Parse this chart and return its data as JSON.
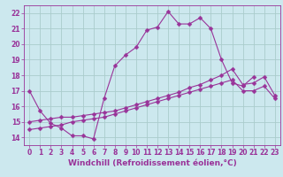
{
  "bg_color": "#cce8ee",
  "grid_color": "#aacccc",
  "line_color": "#993399",
  "marker": "D",
  "markersize": 2.5,
  "linewidth": 0.8,
  "xlabel": "Windchill (Refroidissement éolien,°C)",
  "xlabel_fontsize": 6.5,
  "tick_fontsize": 5.5,
  "ylim": [
    13.5,
    22.5
  ],
  "xlim": [
    -0.5,
    23.5
  ],
  "yticks": [
    14,
    15,
    16,
    17,
    18,
    19,
    20,
    21,
    22
  ],
  "xticks": [
    0,
    1,
    2,
    3,
    4,
    5,
    6,
    7,
    8,
    9,
    10,
    11,
    12,
    13,
    14,
    15,
    16,
    17,
    18,
    19,
    20,
    21,
    22,
    23
  ],
  "series1_x": [
    0,
    1,
    2,
    3,
    4,
    5,
    6,
    7,
    8,
    9,
    10,
    11,
    12,
    13,
    14,
    15,
    16,
    17,
    18,
    19,
    20,
    21
  ],
  "series1_y": [
    17.0,
    15.7,
    14.9,
    14.6,
    14.1,
    14.1,
    13.9,
    16.5,
    18.6,
    19.3,
    19.8,
    20.9,
    21.1,
    22.1,
    21.3,
    21.3,
    21.7,
    21.0,
    19.0,
    17.5,
    17.3,
    17.9
  ],
  "series2_x": [
    0,
    1,
    2,
    3,
    4,
    5,
    6,
    7,
    8,
    9,
    10,
    11,
    12,
    13,
    14,
    15,
    16,
    17,
    18,
    19,
    20,
    21,
    22,
    23
  ],
  "series2_y": [
    15.0,
    15.1,
    15.2,
    15.3,
    15.3,
    15.4,
    15.5,
    15.6,
    15.7,
    15.9,
    16.1,
    16.3,
    16.5,
    16.7,
    16.9,
    17.2,
    17.4,
    17.7,
    18.0,
    18.4,
    17.4,
    17.5,
    17.9,
    16.7
  ],
  "series3_x": [
    0,
    1,
    2,
    3,
    4,
    5,
    6,
    7,
    8,
    9,
    10,
    11,
    12,
    13,
    14,
    15,
    16,
    17,
    18,
    19,
    20,
    21,
    22,
    23
  ],
  "series3_y": [
    14.5,
    14.6,
    14.7,
    14.8,
    15.0,
    15.1,
    15.2,
    15.3,
    15.5,
    15.7,
    15.9,
    16.1,
    16.3,
    16.5,
    16.7,
    16.9,
    17.1,
    17.3,
    17.5,
    17.7,
    17.0,
    17.0,
    17.3,
    16.5
  ]
}
